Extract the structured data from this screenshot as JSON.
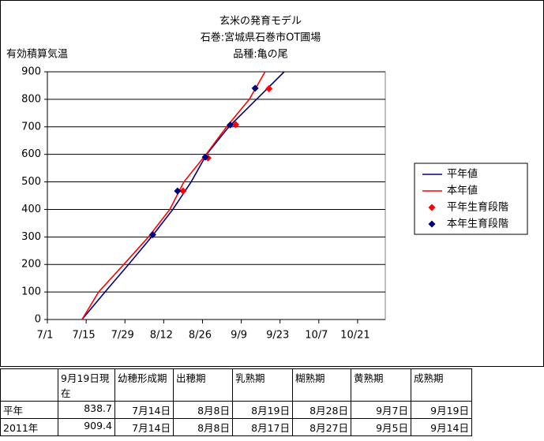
{
  "chart_data": {
    "type": "line",
    "title": "玄米の発育モデル",
    "subtitles": [
      "石巻:宮城県石巻市OT圃場",
      "品種:亀の尾"
    ],
    "y_label": "有効積算気温",
    "xlim": [
      182,
      304
    ],
    "xticks": [
      {
        "value": 182,
        "label": "7/1"
      },
      {
        "value": 196,
        "label": "7/15"
      },
      {
        "value": 210,
        "label": "7/29"
      },
      {
        "value": 224,
        "label": "8/12"
      },
      {
        "value": 238,
        "label": "8/26"
      },
      {
        "value": 252,
        "label": "9/9"
      },
      {
        "value": 266,
        "label": "9/23"
      },
      {
        "value": 280,
        "label": "10/7"
      },
      {
        "value": 294,
        "label": "10/21"
      }
    ],
    "ylim": [
      0,
      900
    ],
    "yticks": [
      0,
      100,
      200,
      300,
      400,
      500,
      600,
      700,
      800,
      900
    ],
    "grid": true,
    "legend": "right",
    "series": [
      {
        "name": "平年値",
        "color": "#000080",
        "style": "line",
        "x": [
          194.5,
          202.8,
          211.3,
          219.6,
          227.3,
          233.9,
          239.5,
          247.5,
          257.5,
          267.5
        ],
        "values": [
          0,
          100,
          200,
          300,
          400,
          500,
          600,
          700,
          800,
          900
        ]
      },
      {
        "name": "本年値",
        "color": "#ff0000",
        "style": "line",
        "x": [
          194.5,
          200.5,
          209.6,
          218.5,
          226.2,
          231.3,
          239.3,
          246.7,
          254.9,
          260.6
        ],
        "values": [
          0,
          100,
          200,
          300,
          400,
          500,
          600,
          700,
          800,
          900
        ]
      },
      {
        "name": "平年生育段階",
        "color": "#ff0000",
        "style": "marker",
        "x": [
          220,
          231,
          240,
          250,
          262
        ],
        "values": [
          308,
          467,
          587,
          708,
          838.7
        ]
      },
      {
        "name": "本年生育段階",
        "color": "#000080",
        "style": "marker",
        "x": [
          220,
          229,
          239,
          248,
          257
        ],
        "values": [
          308,
          467,
          590,
          707,
          840
        ]
      }
    ]
  },
  "table": {
    "header": [
      "",
      "9月19日現在",
      "幼穂形成期",
      "出穂期",
      "乳熟期",
      "糊熟期",
      "黄熟期",
      "成熟期"
    ],
    "rows": [
      [
        "平年",
        838.7,
        "7月14日",
        "8月8日",
        "8月19日",
        "8月28日",
        "9月7日",
        "9月19日"
      ],
      [
        "2011年",
        909.4,
        "7月14日",
        "8月8日",
        "8月17日",
        "8月27日",
        "9月5日",
        "9月14日"
      ]
    ]
  }
}
